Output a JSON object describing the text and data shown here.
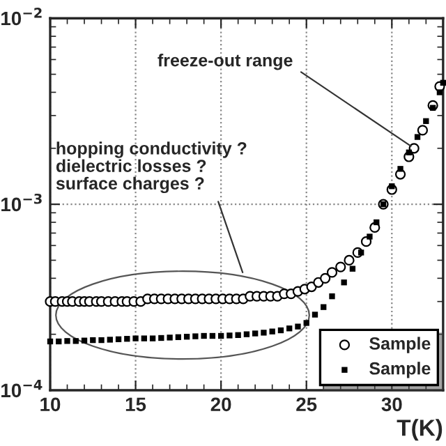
{
  "chart_data": {
    "type": "scatter",
    "xlabel": "T(K)",
    "xlim": [
      10,
      33
    ],
    "xticks": [
      10,
      15,
      20,
      25,
      30
    ],
    "ylim": [
      0.0001,
      0.01
    ],
    "yticks": [
      {
        "value": 0.0001,
        "label": "10$^{−4}$"
      },
      {
        "value": 0.001,
        "label": "10$^{−3}$"
      },
      {
        "value": 0.01,
        "label": "10$^{−2}$"
      }
    ],
    "log": "y",
    "grid": true,
    "legend": "bottom right",
    "series": [
      {
        "name": "Sample",
        "color": "#000000",
        "marker": "circle",
        "x": [
          10.0,
          10.3,
          10.7,
          11.0,
          11.3,
          11.7,
          12.0,
          12.3,
          12.7,
          13.0,
          13.4,
          13.8,
          14.2,
          14.5,
          14.9,
          15.3,
          15.7,
          16.1,
          16.5,
          16.9,
          17.3,
          17.7,
          18.1,
          18.5,
          18.9,
          19.3,
          19.7,
          20.1,
          20.5,
          20.9,
          21.3,
          21.7,
          22.1,
          22.5,
          22.9,
          23.3,
          23.7,
          24.1,
          24.5,
          24.9,
          25.3,
          25.7,
          26.1,
          26.5,
          27.0,
          27.5,
          28.0,
          28.5,
          29.0,
          29.5,
          30.0,
          30.5,
          31.0,
          31.3,
          31.8,
          32.4,
          32.8
        ],
        "values": [
          0.0003,
          0.0003,
          0.0003,
          0.0003,
          0.0003,
          0.0003,
          0.0003,
          0.0003,
          0.0003,
          0.0003,
          0.0003,
          0.0003,
          0.0003,
          0.0003,
          0.0003,
          0.0003,
          0.00031,
          0.00031,
          0.00031,
          0.00031,
          0.00031,
          0.00031,
          0.00031,
          0.00031,
          0.00031,
          0.00031,
          0.00031,
          0.00031,
          0.00031,
          0.00031,
          0.00031,
          0.00032,
          0.00032,
          0.00032,
          0.00032,
          0.00032,
          0.00033,
          0.00033,
          0.00034,
          0.00035,
          0.00036,
          0.00038,
          0.0004,
          0.00043,
          0.00046,
          0.0005,
          0.00055,
          0.00063,
          0.00075,
          0.001,
          0.0012,
          0.00145,
          0.0018,
          0.002,
          0.0025,
          0.0034,
          0.0043
        ]
      },
      {
        "name": "Sample",
        "color": "#000000",
        "marker": "square",
        "x": [
          10.0,
          10.5,
          11.0,
          11.5,
          12.0,
          12.5,
          13.0,
          13.5,
          14.0,
          14.5,
          15.0,
          15.5,
          16.0,
          16.5,
          17.0,
          17.5,
          18.0,
          18.5,
          19.0,
          19.5,
          20.0,
          20.5,
          21.0,
          21.5,
          22.0,
          22.5,
          23.0,
          23.5,
          24.0,
          24.5,
          25.0,
          25.5,
          26.0,
          26.5,
          27.2,
          27.7,
          28.2,
          28.7,
          29.1,
          29.5,
          30.0,
          30.5,
          31.0,
          31.5,
          32.0,
          32.4,
          32.8,
          33.0
        ],
        "values": [
          0.000183,
          0.000183,
          0.000184,
          0.000184,
          0.000185,
          0.000186,
          0.000186,
          0.000187,
          0.000188,
          0.000189,
          0.00019,
          0.00019,
          0.00019,
          0.000191,
          0.000192,
          0.000193,
          0.000194,
          0.000195,
          0.000196,
          0.000196,
          0.000196,
          0.000197,
          0.000198,
          0.0002,
          0.000202,
          0.000204,
          0.000207,
          0.00021,
          0.000215,
          0.00022,
          0.00023,
          0.000255,
          0.00028,
          0.00032,
          0.00038,
          0.00045,
          0.00055,
          0.00067,
          0.0008,
          0.001,
          0.00125,
          0.00155,
          0.0019,
          0.0023,
          0.0028,
          0.0033,
          0.004,
          0.0045
        ]
      }
    ],
    "annotations": [
      {
        "text": "freeze-out range",
        "x": 31.3,
        "y": 0.002
      },
      "hopping conductivity ?\ndielectric losses ?\nsurface charges ?"
    ]
  }
}
